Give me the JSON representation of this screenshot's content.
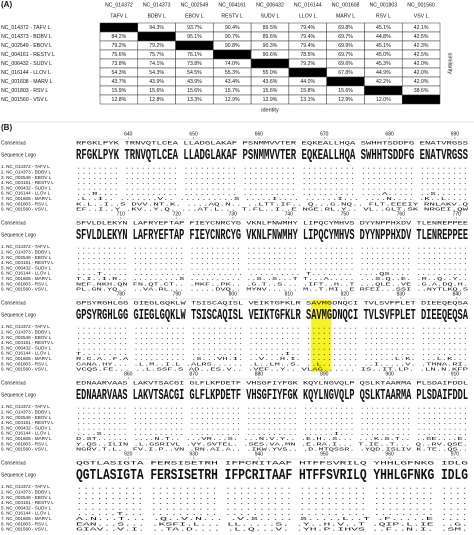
{
  "panel_a": {
    "label": "(A)",
    "columns": [
      {
        "accession": "NC_014372",
        "name": "TAFV L"
      },
      {
        "accession": "NC_014373",
        "name": "BDBV L"
      },
      {
        "accession": "NC_002549",
        "name": "EBOV L"
      },
      {
        "accession": "NC_004161",
        "name": "RESTV L"
      },
      {
        "accession": "NC_006432",
        "name": "SUDV L"
      },
      {
        "accession": "NC_016144",
        "name": "LLOV L"
      },
      {
        "accession": "NC_001608",
        "name": "MARV L"
      },
      {
        "accession": "NC_001803",
        "name": "RSV L"
      },
      {
        "accession": "NC_001560",
        "name": "VSV L"
      }
    ],
    "rows": [
      {
        "label": "NC_014372 - TAFV L",
        "cells": [
          null,
          "94.3%",
          "93.7%",
          "90.4%",
          "89.5%",
          "79.4%",
          "69.8%",
          "45.1%",
          "42.1%"
        ]
      },
      {
        "label": "NC_014373 - BDBV L",
        "cells": [
          "84.2%",
          null,
          "95.1%",
          "90.7%",
          "89.6%",
          "79.4%",
          "69.7%",
          "44.8%",
          "42.5%"
        ]
      },
      {
        "label": "NC_002549 - EBOV L",
        "cells": [
          "79.2%",
          "79.2%",
          null,
          "90.8%",
          "90.3%",
          "79.4%",
          "69.9%",
          "45.1%",
          "42.3%"
        ]
      },
      {
        "label": "NC_004161 - RESTV L",
        "cells": [
          "75.6%",
          "75.7%",
          "76.1%",
          null,
          "90.6%",
          "78.5%",
          "69.7%",
          "45.0%",
          "42.5%"
        ]
      },
      {
        "label": "NC_006432 - SUDV L",
        "cells": [
          "73.8%",
          "74.1%",
          "73.8%",
          "74.0%",
          null,
          "79.2%",
          "69.6%",
          "45.3%",
          "42.0%"
        ]
      },
      {
        "label": "NC_016144 - LLOV L",
        "cells": [
          "54.3%",
          "54.3%",
          "54.5%",
          "55.3%",
          "55.0%",
          null,
          "67.8%",
          "44.9%",
          "42.0%"
        ]
      },
      {
        "label": "NC_001608 - MARV L",
        "cells": [
          "43.7%",
          "43.9%",
          "43.9%",
          "43.4%",
          "43.6%",
          "44.0%",
          null,
          "42.2%",
          "42.0%"
        ]
      },
      {
        "label": "NC_001803 - RSV L",
        "cells": [
          "15.9%",
          "15.6%",
          "15.6%",
          "15.7%",
          "15.6%",
          "15.8%",
          "15.6%",
          null,
          "38.6%"
        ]
      },
      {
        "label": "NC_001560 - VSV L",
        "cells": [
          "12.8%",
          "12.8%",
          "13.3%",
          "12.9%",
          "12.9%",
          "13.1%",
          "12.9%",
          "12.0%",
          null
        ]
      }
    ],
    "x_label": "identity",
    "y_label": "similarity"
  },
  "panel_b": {
    "label": "(B)",
    "consensus_label": "Consensus",
    "logo_label": "Sequence Logo",
    "sequence_names": [
      "1. NC_014372 - TAFV L",
      "2. NC_014373 - BDBV L",
      "3. NC_002549 - EBOV L",
      "4. NC_004161 - RESTV L",
      "5. NC_006432 - SUDV L",
      "6. NC_016144 - LLOV L",
      "7. NC_001608 - MARV L",
      "8. NC_001803 - RSV L",
      "9. NC_001560 - VSV L"
    ],
    "blocks": [
      {
        "positions": [
          640,
          650,
          660,
          670,
          680,
          690
        ],
        "consensus": "RFGKLPYK TRNVQTLCEA LLADGLAKAF PSNMMVVTER EQKEALLHQA SWHHTSDDFG ENATVRGSS",
        "rows": [
          "........ .......... .......... .......... .......... .......... .........",
          "........ .......... .......... .......... .......... .......... .........",
          "........ .......... .......... .......... .......... .......... .........",
          "........ .......... .......... .......... .......... .......... .........",
          "........ .......... .......... .......... .......... .......... .........",
          "...R.... .......... .......... .......... .......... ....A..... ..S......",
          ".L..I.. .......V.. ..........S .....I.... ......I... ....N.... .K..L....",
          "K.L..I..S DVV.NT.K. ....AQ.N.. ..LTT.IF.. Q...G.NQ.. FLT.EEEIY RNLAKV.Q",
          "EF..I..Y .KV..Y.Q. ...AT.L... T.FL..I..E NGE.RL.Y.. VL..GLT.SK NRGEI.QW"
        ]
      },
      {
        "positions": [
          710,
          720,
          730,
          740,
          750,
          760,
          770
        ],
        "consensus": "SFVLDLEKYN LAFRYEFTAP FIEYCNRCYG VKNLFNWMHY LIPQCYMHVS DYYNPPHXDV TLENREPPEE",
        "rows": [
          ".......... .......... .......... .......... .......... .......... ..........",
          ".......... .......... .......... .......... .......... .......... ..........",
          ".......... .......... .......... .......... .......... .......... ..........",
          ".......... .......... .......... .......... .......... .......... ..........",
          ".......... .......... .......... .......... .......... .......... ..........",
          "....T..... .......... .......... .......... T........ ....QS.... ..........",
          "T.I..I.R.. .........S .......... ..S..S...T T...A..... ...S.Q..E. .R..Q..Y..",
          "NEF.NKH.QN FN.QT.CT.. .MKF..PK.. .G.T..S... .IFT..H..T ...QLE..VE .G.A.DQ.H.",
          "PL.GN.YQ.. ..VA.RL... .....DVQ.. MYNV...... M..T.MI..E RFEI...SSI ..NYTLKQ.S"
        ]
      },
      {
        "positions": [
          780,
          790,
          800,
          810,
          820,
          830,
          840
        ],
        "consensus": "GPSYRGHLGG GIEGLGQKLW TSISCAQISL VEIKTGFKLR SAVMGDNQCI TVLSVFPLET DIEEQEQSA",
        "rows": [
          ".......... .......... .......... .......... .......... .......... .........",
          ".......... .......... .......... .......... .......... .......... .........",
          ".......... .......... .......... .......... .......... .......... .........",
          ".......... .......... .......... .......... .......... .......... .........",
          ".......... .......... .......... .......... .......... .......... .........",
          "T......... .......... .......... .......I.. .......... .......... .........",
          "R.C.A..F.A .......... .S...VH.I. ..V...H.I. .......... ......L.K. ...L.K...",
          "CANA.HY... .L.M..I.L .ALRS...... .L..LM..S. ..L....... ..I.....V. .TMNA.RI.",
          "VCQS.FE... ..L.SSF.S AD..ES.V.. .VEF..Y.. VLAG...... IS..IT.LP. .LN.N.KFP"
        ]
      },
      {
        "positions": [
          860,
          870,
          880,
          890,
          900,
          910
        ],
        "consensus": "EDNAARVAAS LAKVTSACGI GLFLKPDETF VHSGFIYFGK KQYLNGVQLP QSLKTAARMA PLSDAIFDDL",
        "rows": [
          ".......... .......... .......... .......... .......... .......... ..........",
          ".......... .......... .......... .......... .......... .......... ..........",
          ".......... .......... .......... .......... .......... .......... ..........",
          ".......... .......... .......... .......... .......... .......... ..........",
          ".......... .......... .......... .......... .......... .......... ..........",
          "....S..... .......... .......... .......... ......I... .......... ..........",
          "D.ST...... ....N.T.. ...VR...S. ...N.V.Y.. .E.H..S... ...K.S.T.. ..GE....E.",
          "Y.QS..ILIN .L.GSRIVL .VY.SVTEL. .SES.VA.MN .E.RA.I... T.IE..T... Q..RV.QSE.",
          "NGRV.T.L.. FV.I.P..VN .RN.AI.A.. .IKW.YVS.. .D.MTQSSR. .YQD.ISLIV K.TE..QS.."
        ]
      },
      {
        "positions": [
          920,
          930,
          940,
          950,
          960,
          970
        ],
        "consensus": "QGTLASIGTA FERSISETRH IFPCRITAAF HTFFSVRILQ YHHLGFNKG IDLG",
        "rows": [
          ".......... .......... .......... .......... ......... ....",
          ".......... .......... .......... .......... ......... ....",
          ".......... .......... .......... .......... ......... ....",
          ".......... .......... .......... .......... ......... ....",
          ".......... .......... .......... .......... ......... ....",
          "......T... .......... .......... .......... ......... ....",
          "A.N...T... .Q..V.N... .V.S..... S.....L..T .F.....E ....",
          "EAN...S... .KSFI.L... LL.....S. .Y..H.V..T .QIP.L.IE ..G.",
          "GIAV..V.I. ..TA.D.... .L.Q...V. .YH.P.IHVS ..F..N.I. .SM."
        ]
      }
    ]
  }
}
